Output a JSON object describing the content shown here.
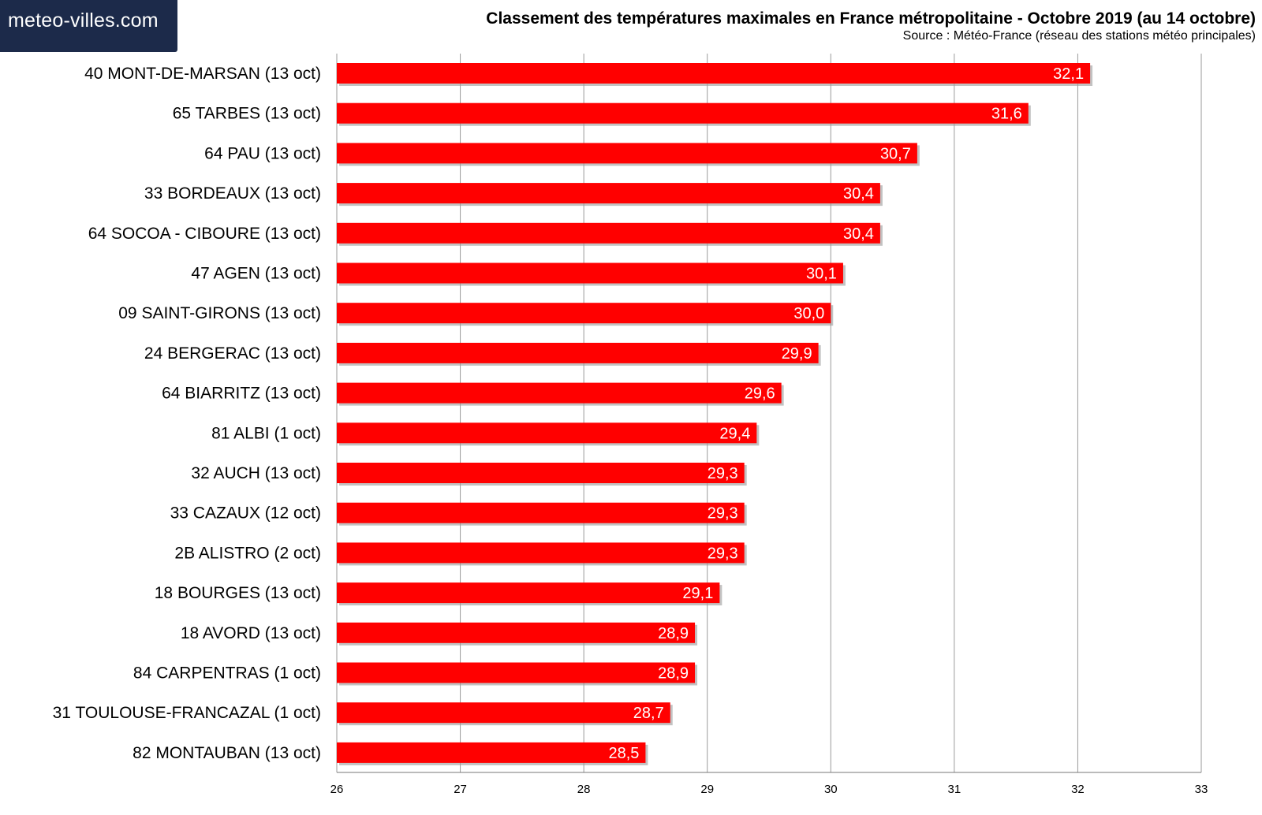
{
  "header": {
    "logo_text": "meteo-villes.com",
    "title": "Classement des températures maximales en France métropolitaine - Octobre 2019 (au 14 octobre)",
    "source": "Source : Météo-France (réseau des stations météo principales)"
  },
  "colors": {
    "bar": "#ff0000",
    "bar_shadow": "#9a9a9a",
    "logo_bg": "#1c2a4a"
  },
  "chart_data": {
    "type": "bar",
    "orientation": "horizontal",
    "title": "Classement des températures maximales en France métropolitaine - Octobre 2019 (au 14 octobre)",
    "xlabel": "",
    "ylabel": "",
    "xlim": [
      26,
      33
    ],
    "ticks": [
      26,
      27,
      28,
      29,
      30,
      31,
      32,
      33
    ],
    "grid": true,
    "categories": [
      "40 MONT-DE-MARSAN (13 oct)",
      "65 TARBES (13 oct)",
      "64 PAU (13 oct)",
      "33 BORDEAUX (13 oct)",
      "64 SOCOA - CIBOURE (13 oct)",
      "47 AGEN (13 oct)",
      "09 SAINT-GIRONS (13 oct)",
      "24 BERGERAC (13 oct)",
      "64 BIARRITZ (13 oct)",
      "81 ALBI (1 oct)",
      "32 AUCH (13 oct)",
      "33 CAZAUX (12 oct)",
      "2B ALISTRO (2 oct)",
      "18 BOURGES (13 oct)",
      "18 AVORD (13 oct)",
      "84 CARPENTRAS (1 oct)",
      "31 TOULOUSE-FRANCAZAL (1 oct)",
      "82 MONTAUBAN (13 oct)"
    ],
    "values": [
      32.1,
      31.6,
      30.7,
      30.4,
      30.4,
      30.1,
      30.0,
      29.9,
      29.6,
      29.4,
      29.3,
      29.3,
      29.3,
      29.1,
      28.9,
      28.9,
      28.7,
      28.5
    ],
    "value_labels": [
      "32,1",
      "31,6",
      "30,7",
      "30,4",
      "30,4",
      "30,1",
      "30,0",
      "29,9",
      "29,6",
      "29,4",
      "29,3",
      "29,3",
      "29,3",
      "29,1",
      "28,9",
      "28,9",
      "28,7",
      "28,5"
    ],
    "tick_labels": [
      "26",
      "27",
      "28",
      "29",
      "30",
      "31",
      "32",
      "33"
    ]
  }
}
